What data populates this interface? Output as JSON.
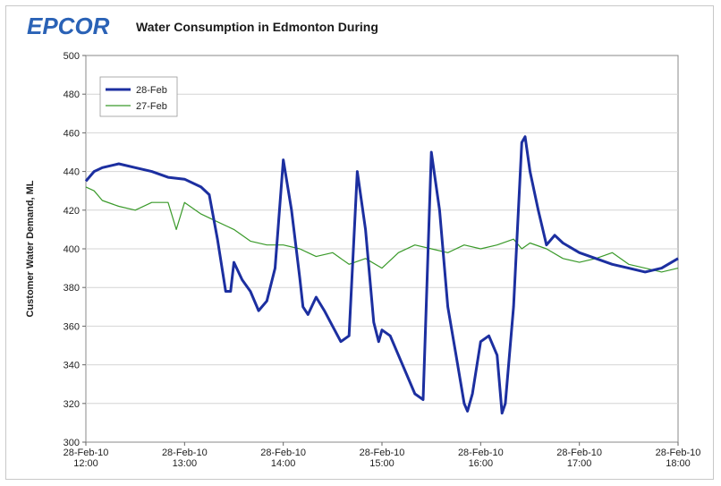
{
  "header": {
    "logo_text": "EPCOR",
    "title": "Water Consumption in Edmonton During"
  },
  "colors": {
    "series_28": "#1c2fa0",
    "series_27": "#3a9a2a",
    "logo": "#2a62b6"
  },
  "chart_data": {
    "type": "line",
    "title": "Water Consumption in Edmonton During",
    "xlabel": "",
    "ylabel": "Customer Water Demand, ML",
    "ylim": [
      300,
      500
    ],
    "yticks": [
      300,
      320,
      340,
      360,
      380,
      400,
      420,
      440,
      460,
      480,
      500
    ],
    "xlim": [
      "28-Feb-10 12:00",
      "28-Feb-10 18:00"
    ],
    "xticks": [
      {
        "date": "28-Feb-10",
        "time": "12:00"
      },
      {
        "date": "28-Feb-10",
        "time": "13:00"
      },
      {
        "date": "28-Feb-10",
        "time": "14:00"
      },
      {
        "date": "28-Feb-10",
        "time": "15:00"
      },
      {
        "date": "28-Feb-10",
        "time": "16:00"
      },
      {
        "date": "28-Feb-10",
        "time": "17:00"
      },
      {
        "date": "28-Feb-10",
        "time": "18:00"
      }
    ],
    "legend_position": "top-left",
    "grid": true,
    "series": [
      {
        "name": "28-Feb",
        "x": [
          "12:00",
          "12:05",
          "12:10",
          "12:20",
          "12:30",
          "12:40",
          "12:50",
          "13:00",
          "13:10",
          "13:15",
          "13:20",
          "13:25",
          "13:28",
          "13:30",
          "13:35",
          "13:40",
          "13:45",
          "13:50",
          "13:55",
          "14:00",
          "14:05",
          "14:10",
          "14:12",
          "14:15",
          "14:20",
          "14:25",
          "14:30",
          "14:35",
          "14:40",
          "14:45",
          "14:50",
          "14:55",
          "14:58",
          "15:00",
          "15:05",
          "15:10",
          "15:15",
          "15:20",
          "15:25",
          "15:30",
          "15:35",
          "15:40",
          "15:45",
          "15:50",
          "15:52",
          "15:55",
          "16:00",
          "16:05",
          "16:10",
          "16:13",
          "16:15",
          "16:20",
          "16:25",
          "16:27",
          "16:30",
          "16:35",
          "16:40",
          "16:45",
          "16:50",
          "17:00",
          "17:10",
          "17:20",
          "17:30",
          "17:40",
          "17:50",
          "18:00"
        ],
        "values": [
          435,
          440,
          442,
          444,
          442,
          440,
          437,
          436,
          432,
          428,
          405,
          378,
          378,
          393,
          384,
          378,
          368,
          373,
          390,
          446,
          420,
          385,
          370,
          366,
          375,
          368,
          360,
          352,
          355,
          440,
          410,
          362,
          352,
          358,
          355,
          345,
          335,
          325,
          322,
          450,
          420,
          370,
          345,
          320,
          316,
          325,
          352,
          355,
          345,
          315,
          320,
          370,
          455,
          458,
          440,
          420,
          402,
          407,
          403,
          398,
          395,
          392,
          390,
          388,
          390,
          395
        ]
      },
      {
        "name": "27-Feb",
        "x": [
          "12:00",
          "12:05",
          "12:10",
          "12:20",
          "12:30",
          "12:40",
          "12:50",
          "12:55",
          "13:00",
          "13:10",
          "13:20",
          "13:30",
          "13:40",
          "13:50",
          "14:00",
          "14:10",
          "14:15",
          "14:20",
          "14:30",
          "14:40",
          "14:50",
          "15:00",
          "15:10",
          "15:20",
          "15:30",
          "15:40",
          "15:50",
          "16:00",
          "16:10",
          "16:20",
          "16:25",
          "16:30",
          "16:40",
          "16:50",
          "17:00",
          "17:10",
          "17:20",
          "17:30",
          "17:40",
          "17:50",
          "18:00"
        ],
        "values": [
          432,
          430,
          425,
          422,
          420,
          424,
          424,
          410,
          424,
          418,
          414,
          410,
          404,
          402,
          402,
          400,
          398,
          396,
          398,
          392,
          395,
          390,
          398,
          402,
          400,
          398,
          402,
          400,
          402,
          405,
          400,
          403,
          400,
          395,
          393,
          395,
          398,
          392,
          390,
          388,
          390
        ]
      }
    ]
  }
}
